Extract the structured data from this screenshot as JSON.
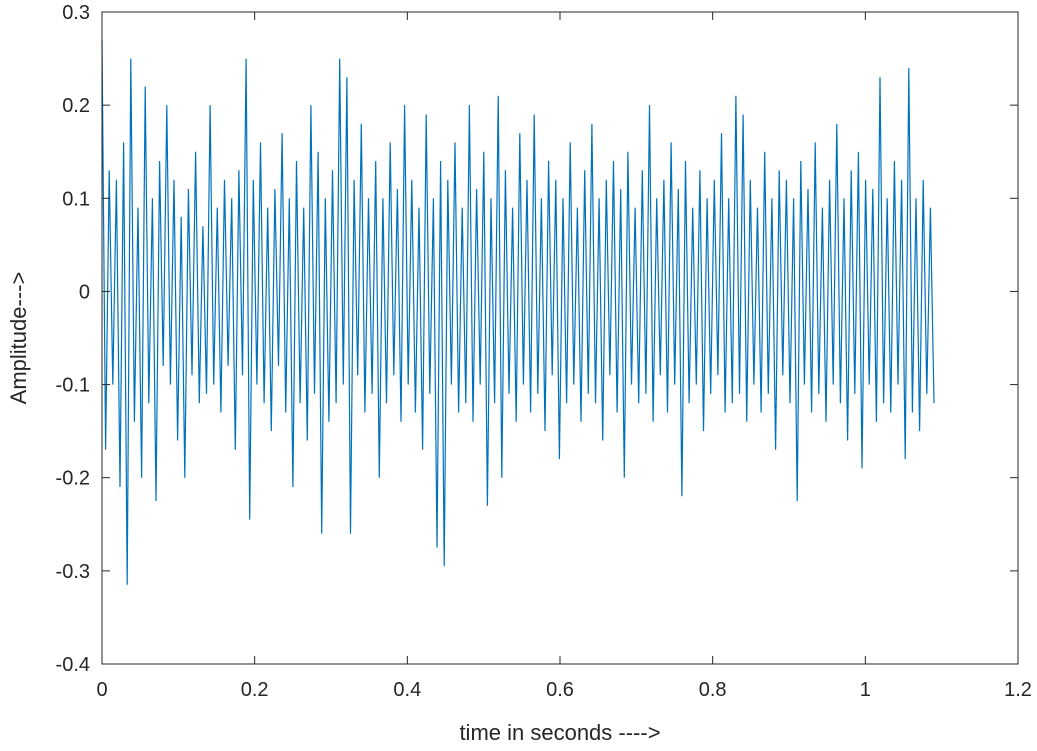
{
  "chart_data": {
    "type": "line",
    "title": "",
    "xlabel": "time in seconds ---->",
    "ylabel": "Amplitude--->",
    "xlim": [
      0,
      1.2
    ],
    "ylim": [
      -0.4,
      0.3
    ],
    "xticks": [
      "0",
      "0.2",
      "0.4",
      "0.6",
      "0.8",
      "1",
      "1.2"
    ],
    "yticks": [
      "0.3",
      "0.2",
      "0.1",
      "0",
      "-0.1",
      "-0.2",
      "-0.3",
      "-0.4"
    ],
    "grid": false,
    "legend": "none",
    "line_color": "#0072BD",
    "signal_time_range": [
      0,
      1.09
    ],
    "series": [
      {
        "values": [
          0.27,
          -0.17,
          0.13,
          -0.1,
          0.12,
          -0.21,
          0.16,
          -0.315,
          0.25,
          -0.14,
          0.09,
          -0.2,
          0.22,
          -0.12,
          0.1,
          -0.225,
          0.14,
          -0.08,
          0.2,
          -0.1,
          0.12,
          -0.16,
          0.08,
          -0.2,
          0.11,
          -0.09,
          0.15,
          -0.12,
          0.07,
          -0.11,
          0.2,
          -0.1,
          0.09,
          -0.13,
          0.12,
          -0.08,
          0.1,
          -0.17,
          0.13,
          -0.09,
          0.25,
          -0.245,
          0.12,
          -0.1,
          0.16,
          -0.12,
          0.09,
          -0.15,
          0.11,
          -0.08,
          0.17,
          -0.13,
          0.1,
          -0.21,
          0.14,
          -0.12,
          0.09,
          -0.16,
          0.2,
          -0.11,
          0.15,
          -0.26,
          0.1,
          -0.14,
          0.13,
          -0.12,
          0.25,
          -0.1,
          0.23,
          -0.26,
          0.12,
          -0.09,
          0.18,
          -0.13,
          0.1,
          -0.11,
          0.14,
          -0.2,
          0.1,
          -0.12,
          0.16,
          -0.09,
          0.11,
          -0.14,
          0.2,
          -0.1,
          0.12,
          -0.13,
          0.09,
          -0.17,
          0.19,
          -0.11,
          0.1,
          -0.275,
          0.14,
          -0.295,
          0.12,
          -0.1,
          0.16,
          -0.13,
          0.09,
          -0.12,
          0.2,
          -0.14,
          0.11,
          -0.1,
          0.15,
          -0.23,
          0.1,
          -0.12,
          0.21,
          -0.2,
          0.13,
          -0.11,
          0.09,
          -0.14,
          0.17,
          -0.1,
          0.12,
          -0.13,
          0.19,
          -0.11,
          0.1,
          -0.15,
          0.14,
          -0.09,
          0.12,
          -0.18,
          0.1,
          -0.12,
          0.16,
          -0.1,
          0.09,
          -0.14,
          0.13,
          -0.11,
          0.18,
          -0.12,
          0.1,
          -0.16,
          0.12,
          -0.09,
          0.14,
          -0.13,
          0.11,
          -0.2,
          0.15,
          -0.1,
          0.09,
          -0.12,
          0.13,
          -0.11,
          0.2,
          -0.14,
          0.1,
          -0.09,
          0.12,
          -0.13,
          0.16,
          -0.1,
          0.11,
          -0.22,
          0.14,
          -0.12,
          0.09,
          -0.1,
          0.13,
          -0.15,
          0.1,
          -0.11,
          0.12,
          -0.09,
          0.17,
          -0.13,
          0.1,
          -0.12,
          0.21,
          -0.11,
          0.19,
          -0.14,
          0.12,
          -0.1,
          0.09,
          -0.13,
          0.15,
          -0.11,
          0.1,
          -0.17,
          0.13,
          -0.09,
          0.12,
          -0.12,
          0.1,
          -0.225,
          0.14,
          -0.1,
          0.11,
          -0.13,
          0.16,
          -0.11,
          0.09,
          -0.14,
          0.12,
          -0.1,
          0.18,
          -0.12,
          0.1,
          -0.16,
          0.13,
          -0.11,
          0.15,
          -0.19,
          0.12,
          -0.1,
          0.11,
          -0.14,
          0.23,
          -0.12,
          0.1,
          -0.13,
          0.14,
          -0.1,
          0.12,
          -0.18,
          0.24,
          -0.13,
          0.1,
          -0.15,
          0.12,
          -0.11,
          0.09,
          -0.12
        ]
      }
    ]
  }
}
